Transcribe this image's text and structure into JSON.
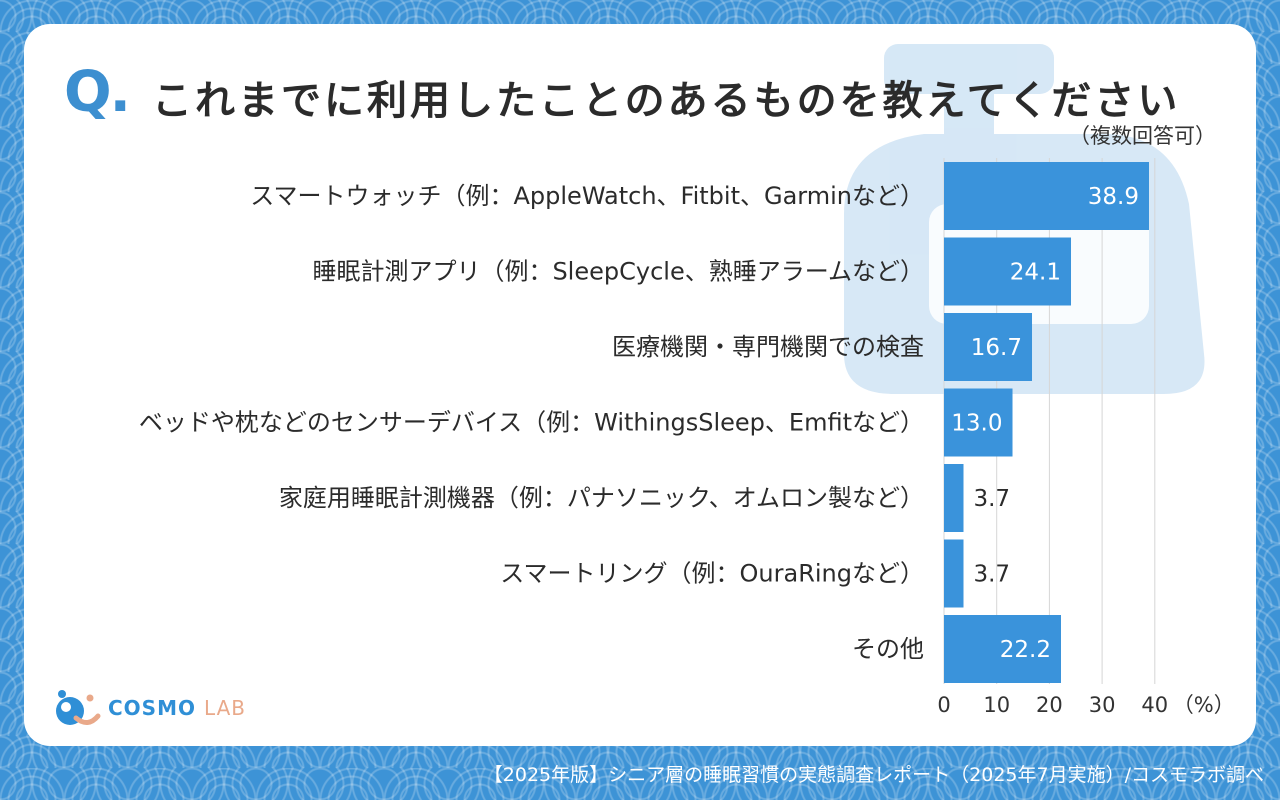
{
  "header": {
    "q_mark": "Q.",
    "question": "これまでに利用したことのあるものを教えてください",
    "note": "（複数回答可）"
  },
  "logo": {
    "main": "COSMO",
    "sub": "LAB"
  },
  "footer": {
    "credit": "【2025年版】シニア層の睡眠習慣の実態調査レポート（2025年7月実施）/コスモラボ調べ"
  },
  "colors": {
    "bar": "#3a93db",
    "accent": "#3d8fd0",
    "background": "#3d93d6"
  },
  "chart_data": {
    "type": "bar",
    "orientation": "horizontal",
    "categories": [
      "スマートウォッチ（例：AppleWatch、Fitbit、Garminなど）",
      "睡眠計測アプリ（例：SleepCycle、熟睡アラームなど）",
      "医療機関・専門機関での検査",
      "ベッドや枕などのセンサーデバイス（例：WithingsSleep、Emfitなど）",
      "家庭用睡眠計測機器（例：パナソニック、オムロン製など）",
      "スマートリング（例：OuraRingなど）",
      "その他"
    ],
    "values": [
      38.9,
      24.1,
      16.7,
      13.0,
      3.7,
      3.7,
      22.2
    ],
    "value_labels": [
      "38.9",
      "24.1",
      "16.7",
      "13.0",
      "3.7",
      "3.7",
      "22.2"
    ],
    "xlim": [
      0,
      40
    ],
    "xticks": [
      "0",
      "10",
      "20",
      "30",
      "40"
    ],
    "unit_label": "（%）",
    "grid": true
  }
}
